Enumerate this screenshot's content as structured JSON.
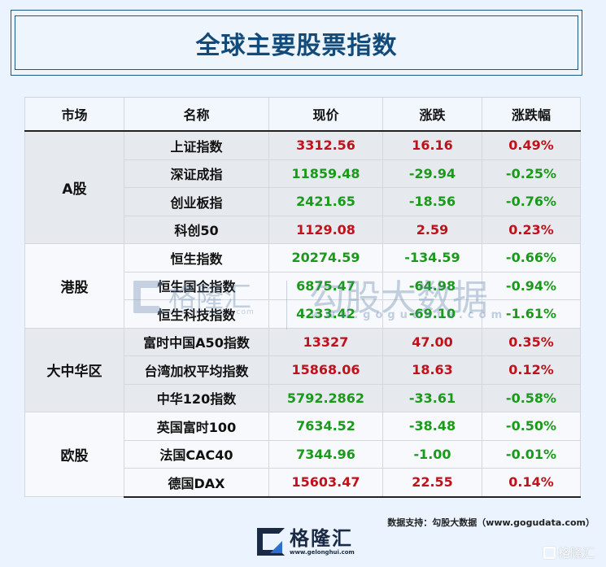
{
  "title": "全球主要股票指数",
  "table": {
    "headers": [
      "市场",
      "名称",
      "现价",
      "涨跌",
      "涨跌幅"
    ],
    "groups": [
      {
        "market": "A股",
        "rows": [
          {
            "name": "上证指数",
            "price": "3312.56",
            "change": "16.16",
            "pct": "0.49%",
            "dir": "up"
          },
          {
            "name": "深证成指",
            "price": "11859.48",
            "change": "-29.94",
            "pct": "-0.25%",
            "dir": "down"
          },
          {
            "name": "创业板指",
            "price": "2421.65",
            "change": "-18.56",
            "pct": "-0.76%",
            "dir": "down"
          },
          {
            "name": "科创50",
            "price": "1129.08",
            "change": "2.59",
            "pct": "0.23%",
            "dir": "up"
          }
        ]
      },
      {
        "market": "港股",
        "rows": [
          {
            "name": "恒生指数",
            "price": "20274.59",
            "change": "-134.59",
            "pct": "-0.66%",
            "dir": "down"
          },
          {
            "name": "恒生国企指数",
            "price": "6875.47",
            "change": "-64.98",
            "pct": "-0.94%",
            "dir": "down"
          },
          {
            "name": "恒生科技指数",
            "price": "4233.42",
            "change": "-69.10",
            "pct": "-1.61%",
            "dir": "down"
          }
        ]
      },
      {
        "market": "大中华区",
        "rows": [
          {
            "name": "富时中国A50指数",
            "price": "13327",
            "change": "47.00",
            "pct": "0.35%",
            "dir": "up"
          },
          {
            "name": "台湾加权平均指数",
            "price": "15868.06",
            "change": "18.63",
            "pct": "0.12%",
            "dir": "up"
          },
          {
            "name": "中华120指数",
            "price": "5792.2862",
            "change": "-33.61",
            "pct": "-0.58%",
            "dir": "down"
          }
        ]
      },
      {
        "market": "欧股",
        "rows": [
          {
            "name": "英国富时100",
            "price": "7634.52",
            "change": "-38.48",
            "pct": "-0.50%",
            "dir": "down"
          },
          {
            "name": "法国CAC40",
            "price": "7344.96",
            "change": "-1.00",
            "pct": "-0.01%",
            "dir": "down"
          },
          {
            "name": "德国DAX",
            "price": "15603.47",
            "change": "22.55",
            "pct": "0.14%",
            "dir": "up"
          }
        ]
      }
    ]
  },
  "colors": {
    "up": "#c0121b",
    "down": "#1a9a1a",
    "title": "#124a7a",
    "background": "#eaf3fe"
  },
  "watermark": {
    "brand1": "格隆汇",
    "brand1_url": "www.gelonghui.com",
    "brand2": "勾股大数据",
    "brand2_url": "www.gogudata.com"
  },
  "footer": {
    "source": "数据支持：勾股大数据（www.gogudata.com）",
    "logo_name": "格隆汇",
    "logo_url": "www.gelonghui.com",
    "corner_watermark": "格隆汇"
  }
}
